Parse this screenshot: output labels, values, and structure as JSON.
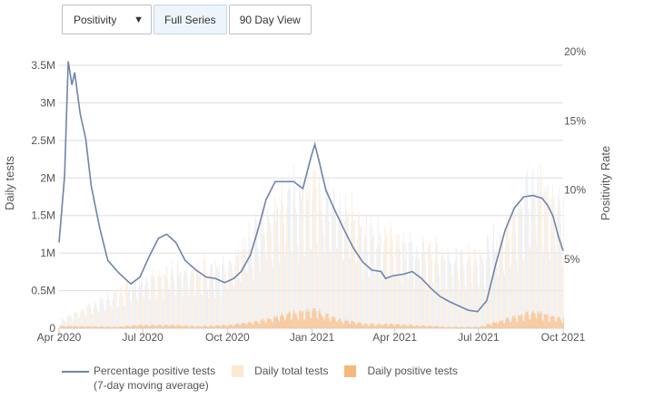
{
  "controls": {
    "metric_select": "Positivity",
    "full_series_label": "Full Series",
    "ninety_day_label": "90 Day View"
  },
  "colors": {
    "positivity_line": "#7083aa",
    "total_tests": "#fde9d2",
    "total_tests_alt": "#e4ebf6",
    "positive_tests": "#f6b87a",
    "grid": "#dddddd",
    "axis_text": "#555555"
  },
  "legend": {
    "line_label_1": "Percentage positive tests",
    "line_label_2": "(7-day moving average)",
    "total_label": "Daily total tests",
    "positive_label": "Daily positive tests"
  },
  "chart_data": {
    "type": "bar",
    "xlabel": "",
    "ylabel": "Daily tests",
    "y2label": "Positivity Rate",
    "ylim": [
      0,
      3500000
    ],
    "y2lim": [
      0,
      20
    ],
    "grid": true,
    "legend_position": "bottom-left",
    "x_ticks": [
      "Apr 2020",
      "Jul 2020",
      "Oct 2020",
      "Jan 2021",
      "Apr 2021",
      "Jul 2021",
      "Oct 2021"
    ],
    "y_ticks": [
      "0",
      "0.5M",
      "1M",
      "1.5M",
      "2M",
      "2.5M",
      "3M",
      "3.5M"
    ],
    "y2_ticks": [
      "5%",
      "10%",
      "15%",
      "20%"
    ],
    "date_range": [
      "2020-04-01",
      "2021-10-01"
    ],
    "series": [
      {
        "name": "Percentage positive tests (7-day moving average)",
        "kind": "line",
        "axis": "right",
        "points": [
          [
            "2020-04-01",
            6.2
          ],
          [
            "2020-04-07",
            11.0
          ],
          [
            "2020-04-11",
            19.3
          ],
          [
            "2020-04-15",
            17.6
          ],
          [
            "2020-04-18",
            18.5
          ],
          [
            "2020-04-24",
            15.5
          ],
          [
            "2020-04-30",
            13.7
          ],
          [
            "2020-05-06",
            10.3
          ],
          [
            "2020-05-15",
            7.3
          ],
          [
            "2020-05-24",
            4.9
          ],
          [
            "2020-06-05",
            4.0
          ],
          [
            "2020-06-18",
            3.2
          ],
          [
            "2020-06-28",
            3.7
          ],
          [
            "2020-07-08",
            5.2
          ],
          [
            "2020-07-18",
            6.5
          ],
          [
            "2020-07-27",
            6.8
          ],
          [
            "2020-08-06",
            6.2
          ],
          [
            "2020-08-16",
            4.9
          ],
          [
            "2020-08-28",
            4.2
          ],
          [
            "2020-09-08",
            3.7
          ],
          [
            "2020-09-18",
            3.6
          ],
          [
            "2020-09-28",
            3.3
          ],
          [
            "2020-10-08",
            3.6
          ],
          [
            "2020-10-16",
            4.1
          ],
          [
            "2020-10-26",
            5.3
          ],
          [
            "2020-11-04",
            7.3
          ],
          [
            "2020-11-12",
            9.3
          ],
          [
            "2020-11-22",
            10.6
          ],
          [
            "2020-12-02",
            10.6
          ],
          [
            "2020-12-12",
            10.6
          ],
          [
            "2020-12-22",
            10.1
          ],
          [
            "2020-12-31",
            12.4
          ],
          [
            "2021-01-04",
            13.3
          ],
          [
            "2021-01-09",
            12.0
          ],
          [
            "2021-01-16",
            10.0
          ],
          [
            "2021-01-26",
            8.5
          ],
          [
            "2021-02-05",
            7.1
          ],
          [
            "2021-02-15",
            5.8
          ],
          [
            "2021-02-25",
            4.8
          ],
          [
            "2021-03-07",
            4.2
          ],
          [
            "2021-03-17",
            4.1
          ],
          [
            "2021-03-22",
            3.6
          ],
          [
            "2021-03-30",
            3.8
          ],
          [
            "2021-04-10",
            3.9
          ],
          [
            "2021-04-20",
            4.1
          ],
          [
            "2021-04-30",
            3.6
          ],
          [
            "2021-05-10",
            2.9
          ],
          [
            "2021-05-20",
            2.3
          ],
          [
            "2021-05-31",
            1.9
          ],
          [
            "2021-06-10",
            1.6
          ],
          [
            "2021-06-20",
            1.3
          ],
          [
            "2021-06-30",
            1.2
          ],
          [
            "2021-07-10",
            2.0
          ],
          [
            "2021-07-20",
            4.7
          ],
          [
            "2021-07-30",
            7.1
          ],
          [
            "2021-08-09",
            8.7
          ],
          [
            "2021-08-19",
            9.5
          ],
          [
            "2021-08-29",
            9.6
          ],
          [
            "2021-09-08",
            9.4
          ],
          [
            "2021-09-14",
            8.9
          ],
          [
            "2021-09-20",
            8.1
          ],
          [
            "2021-09-26",
            6.6
          ],
          [
            "2021-10-01",
            5.6
          ]
        ]
      },
      {
        "name": "Daily total tests",
        "kind": "bars",
        "axis": "left",
        "envelope": [
          [
            "2020-04-01",
            90000
          ],
          [
            "2020-05-01",
            280000
          ],
          [
            "2020-06-01",
            480000
          ],
          [
            "2020-07-01",
            650000
          ],
          [
            "2020-08-01",
            800000
          ],
          [
            "2020-09-01",
            820000
          ],
          [
            "2020-10-01",
            850000
          ],
          [
            "2020-11-01",
            1350000
          ],
          [
            "2020-12-01",
            1800000
          ],
          [
            "2021-01-01",
            1950000
          ],
          [
            "2021-02-01",
            1700000
          ],
          [
            "2021-03-01",
            1350000
          ],
          [
            "2021-04-01",
            1150000
          ],
          [
            "2021-05-01",
            1050000
          ],
          [
            "2021-06-01",
            1000000
          ],
          [
            "2021-07-01",
            950000
          ],
          [
            "2021-08-01",
            1350000
          ],
          [
            "2021-09-01",
            2100000
          ],
          [
            "2021-10-01",
            1700000
          ]
        ]
      },
      {
        "name": "Daily positive tests",
        "kind": "bars",
        "axis": "left",
        "envelope": [
          [
            "2020-04-01",
            30000
          ],
          [
            "2020-05-01",
            25000
          ],
          [
            "2020-06-01",
            20000
          ],
          [
            "2020-07-01",
            45000
          ],
          [
            "2020-08-01",
            45000
          ],
          [
            "2020-09-01",
            30000
          ],
          [
            "2020-10-01",
            45000
          ],
          [
            "2020-11-01",
            90000
          ],
          [
            "2020-12-01",
            190000
          ],
          [
            "2021-01-01",
            250000
          ],
          [
            "2021-02-01",
            120000
          ],
          [
            "2021-03-01",
            60000
          ],
          [
            "2021-04-01",
            55000
          ],
          [
            "2021-05-01",
            35000
          ],
          [
            "2021-06-01",
            18000
          ],
          [
            "2021-07-01",
            20000
          ],
          [
            "2021-08-01",
            130000
          ],
          [
            "2021-09-01",
            230000
          ],
          [
            "2021-10-01",
            130000
          ]
        ]
      }
    ]
  }
}
